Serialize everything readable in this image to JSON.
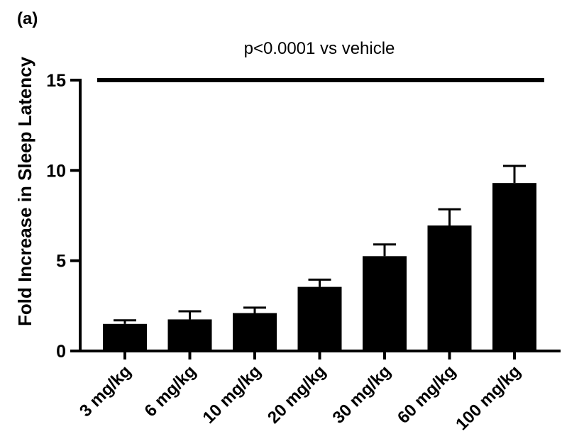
{
  "chart_data": {
    "type": "bar",
    "panel_label": "(a)",
    "annotation": "p<0.0001 vs vehicle",
    "ylabel": "Fold Increase in Sleep Latency",
    "xlabel": "",
    "categories": [
      "3 mg/kg",
      "6 mg/kg",
      "10 mg/kg",
      "20 mg/kg",
      "30 mg/kg",
      "60 mg/kg",
      "100 mg/kg"
    ],
    "values": [
      1.5,
      1.75,
      2.1,
      3.55,
      5.25,
      6.95,
      9.3
    ],
    "errors": [
      0.2,
      0.45,
      0.3,
      0.4,
      0.65,
      0.9,
      0.95
    ],
    "ylim": [
      0,
      15
    ],
    "yticks": [
      "0",
      "5",
      "10",
      "15"
    ],
    "bar_color": "#000000",
    "grid": false,
    "significance_line_value": 15
  }
}
